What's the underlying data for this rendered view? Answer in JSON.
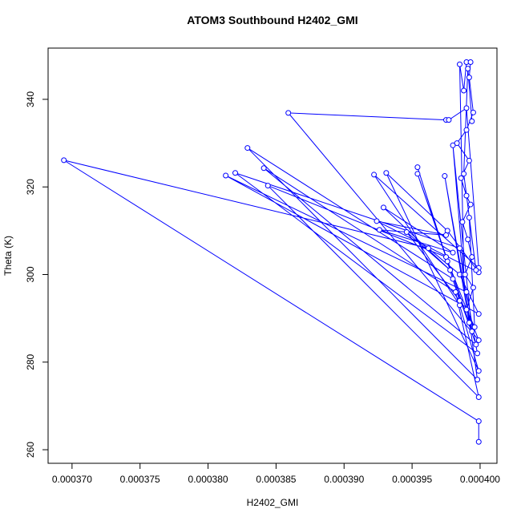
{
  "chart_data": {
    "type": "line",
    "title": "ATOM3 Southbound H2402_GMI",
    "x_label": "H2402_GMI",
    "y_label": "Theta (K)",
    "color": "#0000ff",
    "markers": true,
    "xlim": [
      0.00036824,
      0.00040124
    ],
    "ylim": [
      256.9,
      351.7
    ],
    "xticks": [
      {
        "value": 0.00037,
        "label": "0.000370"
      },
      {
        "value": 0.000375,
        "label": "0.000375"
      },
      {
        "value": 0.00038,
        "label": "0.000380"
      },
      {
        "value": 0.000385,
        "label": "0.000385"
      },
      {
        "value": 0.00039,
        "label": "0.000390"
      },
      {
        "value": 0.000395,
        "label": "0.000395"
      },
      {
        "value": 0.0004,
        "label": "0.000400"
      }
    ],
    "yticks": [
      260,
      280,
      300,
      320,
      340
    ],
    "x": [
      0.0003999,
      0.0003999,
      0.0003694,
      0.0003962,
      0.0003985,
      0.0003999,
      0.0003813,
      0.000399,
      0.0003998,
      0.000382,
      0.0003985,
      0.0003998,
      0.0003829,
      0.000398,
      0.0003997,
      0.0003841,
      0.0003982,
      0.0003999,
      0.0003844,
      0.0003975,
      0.0003999,
      0.0003859,
      0.0003975,
      0.0003977,
      0.000399,
      0.0003999,
      0.0003922,
      0.0003985,
      0.0003999,
      0.0003931,
      0.0003976,
      0.0003999,
      0.0003924,
      0.0003975,
      0.0003926,
      0.000398,
      0.0003929,
      0.0003978,
      0.0003946,
      0.0003985,
      0.0003954,
      0.0003976,
      0.0003954,
      0.0003992,
      0.0003974,
      0.0003994,
      0.000398,
      0.0003988,
      0.0003985,
      0.0003988,
      0.000399,
      0.0003993,
      0.0003992,
      0.0003995,
      0.000399,
      0.0003983,
      0.0003992,
      0.0003986,
      0.000399,
      0.0003993,
      0.0003987,
      0.0003991,
      0.0003994,
      0.0003989,
      0.0003995,
      0.000399,
      0.0003996,
      0.0003992,
      0.0003997,
      0.0003988,
      0.0003991,
      0.0003994
    ],
    "values": [
      261.8,
      266.5,
      326.1,
      306,
      300,
      291,
      322.6,
      296,
      282,
      323.2,
      306,
      276,
      328.9,
      299,
      284,
      324.3,
      296,
      272,
      320.3,
      304,
      285,
      336.9,
      335.3,
      335.3,
      338,
      301.5,
      322.8,
      293,
      278,
      323.2,
      310,
      300.5,
      312.2,
      309,
      310.2,
      305,
      315.3,
      301,
      309.7,
      294,
      324.5,
      303,
      323,
      289,
      322.5,
      287,
      329.5,
      300,
      348,
      342,
      348.5,
      348.5,
      345,
      337,
      333,
      330,
      326,
      322,
      318,
      316,
      312,
      308,
      304,
      300,
      297,
      292,
      288,
      313,
      301,
      323,
      347,
      335
    ]
  }
}
